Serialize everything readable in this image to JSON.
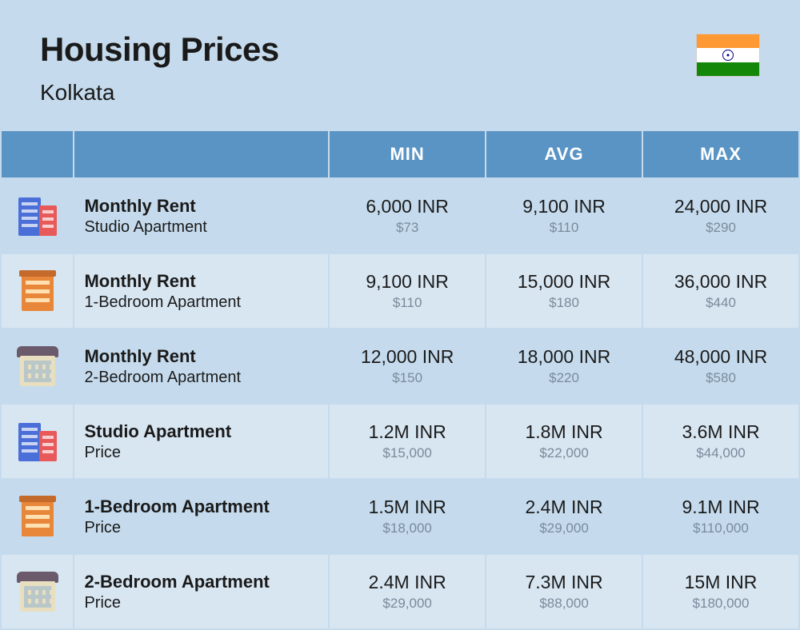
{
  "header": {
    "title": "Housing Prices",
    "city": "Kolkata",
    "flag": {
      "top": "#ff9933",
      "middle": "#ffffff",
      "bottom": "#138808",
      "chakra": "#000080"
    }
  },
  "columns": {
    "min": "MIN",
    "avg": "AVG",
    "max": "MAX"
  },
  "colors": {
    "page_bg": "#c5dbed",
    "header_cell_bg": "#5a94c4",
    "header_cell_text": "#ffffff",
    "row_bg": "#c5dbed",
    "row_alt_bg": "#d8e6f2",
    "text_primary": "#1a1a1a",
    "text_secondary": "#7a8a9a"
  },
  "rows": [
    {
      "icon": "building-towers-icon",
      "title": "Monthly Rent",
      "subtitle": "Studio Apartment",
      "min_inr": "6,000 INR",
      "min_usd": "$73",
      "avg_inr": "9,100 INR",
      "avg_usd": "$110",
      "max_inr": "24,000 INR",
      "max_usd": "$290"
    },
    {
      "icon": "building-orange-icon",
      "title": "Monthly Rent",
      "subtitle": "1-Bedroom Apartment",
      "min_inr": "9,100 INR",
      "min_usd": "$110",
      "avg_inr": "15,000 INR",
      "avg_usd": "$180",
      "max_inr": "36,000 INR",
      "max_usd": "$440"
    },
    {
      "icon": "building-house-icon",
      "title": "Monthly Rent",
      "subtitle": "2-Bedroom Apartment",
      "min_inr": "12,000 INR",
      "min_usd": "$150",
      "avg_inr": "18,000 INR",
      "avg_usd": "$220",
      "max_inr": "48,000 INR",
      "max_usd": "$580"
    },
    {
      "icon": "building-towers-icon",
      "title": "Studio Apartment",
      "subtitle": "Price",
      "min_inr": "1.2M INR",
      "min_usd": "$15,000",
      "avg_inr": "1.8M INR",
      "avg_usd": "$22,000",
      "max_inr": "3.6M INR",
      "max_usd": "$44,000"
    },
    {
      "icon": "building-orange-icon",
      "title": "1-Bedroom Apartment",
      "subtitle": "Price",
      "min_inr": "1.5M INR",
      "min_usd": "$18,000",
      "avg_inr": "2.4M INR",
      "avg_usd": "$29,000",
      "max_inr": "9.1M INR",
      "max_usd": "$110,000"
    },
    {
      "icon": "building-house-icon",
      "title": "2-Bedroom Apartment",
      "subtitle": "Price",
      "min_inr": "2.4M INR",
      "min_usd": "$29,000",
      "avg_inr": "7.3M INR",
      "avg_usd": "$88,000",
      "max_inr": "15M INR",
      "max_usd": "$180,000"
    }
  ]
}
